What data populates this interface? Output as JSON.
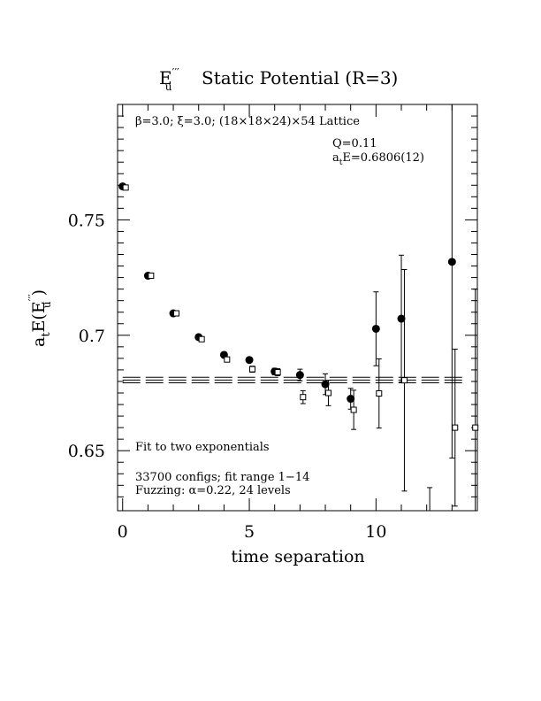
{
  "chart_data": {
    "type": "scatter",
    "title": {
      "prefix": "E",
      "superscript": "′′′",
      "subscript": "u",
      "text": "Static Potential (R=3)"
    },
    "xlabel": "time separation",
    "ylabel": {
      "prefix": "a",
      "sub": "t",
      "middle": "E(E",
      "superscript": "′′′",
      "subscript": "u",
      "suffix": " )"
    },
    "xlim": [
      -0.2,
      14.0
    ],
    "ylim": [
      0.624,
      0.8
    ],
    "x_ticks": [
      {
        "value": 0,
        "label": "0"
      },
      {
        "value": 5,
        "label": "5"
      },
      {
        "value": 10,
        "label": "10"
      }
    ],
    "y_ticks": [
      {
        "value": 0.65,
        "label": "0.65"
      },
      {
        "value": 0.7,
        "label": "0.7"
      },
      {
        "value": 0.75,
        "label": "0.75"
      }
    ],
    "annotations": {
      "lattice": "β=3.0; ξ=3.0; (18×18×24)×54 Lattice",
      "q": "Q=0.11",
      "energy_prefix": "a",
      "energy_sub": "t",
      "energy_value": "E=0.6806(12)",
      "fit": "Fit to two exponentials",
      "configs": "33700 configs; fit range 1−14",
      "fuzzing": "Fuzzing: α=0.22, 24 levels"
    },
    "fit": {
      "value": 0.6806,
      "error": 0.0012,
      "x_range": [
        0,
        13.5
      ]
    },
    "series": [
      {
        "marker": "filled-circle",
        "points": [
          {
            "x": 0,
            "y": 0.7645,
            "err": 0.0003
          },
          {
            "x": 1,
            "y": 0.7258,
            "err": 0.0003
          },
          {
            "x": 2,
            "y": 0.7095,
            "err": 0.0005
          },
          {
            "x": 3,
            "y": 0.6992,
            "err": 0.0006
          },
          {
            "x": 4,
            "y": 0.6915,
            "err": 0.0008
          },
          {
            "x": 5,
            "y": 0.6893,
            "err": 0.0011
          },
          {
            "x": 6,
            "y": 0.6843,
            "err": 0.0014
          },
          {
            "x": 7,
            "y": 0.6828,
            "err": 0.0025
          },
          {
            "x": 8,
            "y": 0.6788,
            "err": 0.0045
          },
          {
            "x": 9,
            "y": 0.6725,
            "err": 0.0045
          },
          {
            "x": 10,
            "y": 0.7028,
            "err": 0.016
          },
          {
            "x": 11,
            "y": 0.7072,
            "err": 0.0275
          },
          {
            "x": 13,
            "y": 0.7318,
            "err": 0.085
          }
        ]
      },
      {
        "marker": "open-square",
        "points": [
          {
            "x": 0.12,
            "y": 0.764,
            "err": 0.0004
          },
          {
            "x": 1.12,
            "y": 0.7258,
            "err": 0.0004
          },
          {
            "x": 2.12,
            "y": 0.7095,
            "err": 0.0005
          },
          {
            "x": 3.12,
            "y": 0.6983,
            "err": 0.0007
          },
          {
            "x": 4.12,
            "y": 0.6895,
            "err": 0.0009
          },
          {
            "x": 5.12,
            "y": 0.6853,
            "err": 0.0013
          },
          {
            "x": 6.12,
            "y": 0.684,
            "err": 0.0015
          },
          {
            "x": 7.12,
            "y": 0.6732,
            "err": 0.0028
          },
          {
            "x": 8.12,
            "y": 0.675,
            "err": 0.0055
          },
          {
            "x": 9.12,
            "y": 0.6677,
            "err": 0.0085
          },
          {
            "x": 10.12,
            "y": 0.6748,
            "err": 0.015
          },
          {
            "x": 11.12,
            "y": 0.6805,
            "err": 0.048
          },
          {
            "x": 12.12,
            "y": 0.62,
            "err": 0.014
          },
          {
            "x": 13.12,
            "y": 0.66,
            "err": 0.034
          },
          {
            "x": 13.92,
            "y": 0.66,
            "err": 0.06
          }
        ]
      }
    ]
  }
}
